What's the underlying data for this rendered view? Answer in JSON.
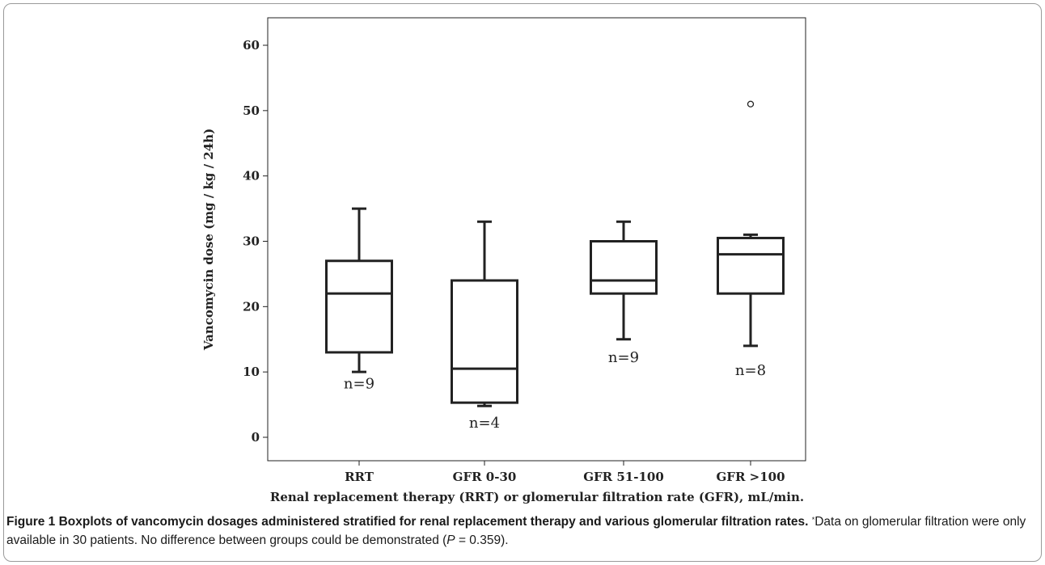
{
  "chart_data": {
    "type": "boxplot",
    "categories": [
      "RRT",
      "GFR 0-30",
      "GFR 51-100",
      "GFR >100"
    ],
    "boxes": [
      {
        "category": "RRT",
        "whisker_low": 10,
        "q1": 13,
        "median": 22,
        "q3": 27,
        "whisker_high": 35,
        "outliers": [],
        "n_label": "n=9"
      },
      {
        "category": "GFR 0-30",
        "whisker_low": 4.8,
        "q1": 5.3,
        "median": 10.5,
        "q3": 24,
        "whisker_high": 33,
        "outliers": [],
        "n_label": "n=4"
      },
      {
        "category": "GFR 51-100",
        "whisker_low": 15,
        "q1": 22,
        "median": 24,
        "q3": 30,
        "whisker_high": 33,
        "outliers": [],
        "n_label": "n=9"
      },
      {
        "category": "GFR >100",
        "whisker_low": 14,
        "q1": 22,
        "median": 28,
        "q3": 30.5,
        "whisker_high": 31,
        "outliers": [
          51
        ],
        "n_label": "n=8"
      }
    ],
    "ylabel": "Vancomycin dose (mg / kg / 24h)",
    "xlabel": "Renal replacement therapy (RRT) or glomerular filtration rate (GFR), mL/min.",
    "ylim": [
      -2,
      63
    ],
    "yticks": [
      "0",
      "10",
      "20",
      "30",
      "40",
      "50",
      "60"
    ],
    "grid": false
  },
  "caption": {
    "title": "Figure 1 Boxplots of vancomycin dosages administered stratified for renal replacement therapy and various glomerular filtration rates.",
    "footnote_mark": "*",
    "text_before_p": "Data on glomerular filtration were only available in 30 patients. No difference between groups could be demonstrated (",
    "p_symbol": "P",
    "p_value": " = 0.359)."
  }
}
